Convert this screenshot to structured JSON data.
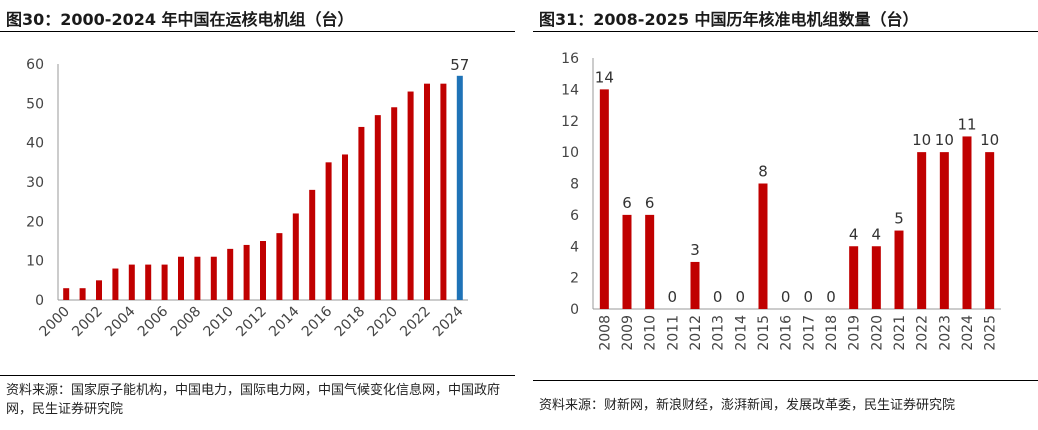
{
  "charts": [
    {
      "id": "left",
      "title": "图30：2000-2024 年中国在运核电机组（台）",
      "source": "资料来源：国家原子能机构，中国电力，国际电力网，中国气候变化信息网，中国政府网，民生证券研究院",
      "colors": {
        "bar": "#c00000",
        "highlight": "#1f73b7",
        "axis": "#999999"
      }
    },
    {
      "id": "right",
      "title": "图31：2008-2025 中国历年核准电机组数量（台）",
      "source": "资料来源：财新网，新浪财经，澎湃新闻，发展改革委，民生证券研究院",
      "colors": {
        "bar": "#c00000",
        "axis": "#999999"
      }
    }
  ],
  "chart_data": [
    {
      "type": "bar",
      "categories": [
        "2000",
        "2001",
        "2002",
        "2003",
        "2004",
        "2005",
        "2006",
        "2007",
        "2008",
        "2009",
        "2010",
        "2011",
        "2012",
        "2013",
        "2014",
        "2015",
        "2016",
        "2017",
        "2018",
        "2019",
        "2020",
        "2021",
        "2022",
        "2023",
        "2024"
      ],
      "x_tick_labels": [
        "2000",
        "2002",
        "2004",
        "2006",
        "2008",
        "2010",
        "2012",
        "2014",
        "2016",
        "2018",
        "2020",
        "2022",
        "2024"
      ],
      "values": [
        3,
        3,
        5,
        8,
        9,
        9,
        9,
        11,
        11,
        11,
        13,
        14,
        15,
        17,
        22,
        28,
        35,
        37,
        44,
        47,
        49,
        53,
        55,
        55,
        57
      ],
      "ylim": [
        0,
        60
      ],
      "yticks": [
        0,
        10,
        20,
        30,
        40,
        50,
        60
      ],
      "highlight_index": 24,
      "data_labels": {
        "24": "57"
      },
      "grid": false
    },
    {
      "type": "bar",
      "categories": [
        "2008",
        "2009",
        "2010",
        "2011",
        "2012",
        "2013",
        "2014",
        "2015",
        "2016",
        "2017",
        "2018",
        "2019",
        "2020",
        "2021",
        "2022",
        "2023",
        "2024",
        "2025"
      ],
      "values": [
        14,
        6,
        6,
        0,
        3,
        0,
        0,
        8,
        0,
        0,
        0,
        4,
        4,
        5,
        10,
        10,
        11,
        10
      ],
      "ylim": [
        0,
        16
      ],
      "yticks": [
        0,
        2,
        4,
        6,
        8,
        10,
        12,
        14,
        16
      ],
      "data_labels": [
        "14",
        "6",
        "6",
        "0",
        "3",
        "0",
        "0",
        "8",
        "0",
        "0",
        "0",
        "4",
        "4",
        "5",
        "10",
        "10",
        "11",
        "10"
      ],
      "grid": false
    }
  ]
}
